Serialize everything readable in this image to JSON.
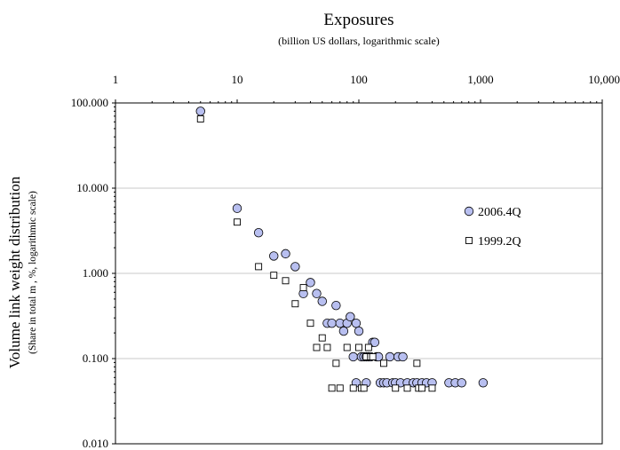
{
  "chart_data": {
    "type": "scatter",
    "title": "Exposures",
    "subtitle": "(billion US dollars, logarithmic scale)",
    "xlabel": "",
    "ylabel": "Volume link weight distribution",
    "ylabel_sub": "(Share in total m , %,  logarithmic scale)",
    "x_scale": "log",
    "y_scale": "log",
    "x_axis_position": "top",
    "xlim": [
      1,
      10000
    ],
    "ylim": [
      0.01,
      100
    ],
    "x_ticks": [
      "1",
      "10",
      "100",
      "1,000",
      "10,000"
    ],
    "y_ticks": [
      "100.000",
      "10.000",
      "1.000",
      "0.100",
      "0.010"
    ],
    "grid": "horizontal",
    "legend_position": "right",
    "series": [
      {
        "name": "2006.4Q",
        "marker": "circle",
        "color": "#b8bff0",
        "points": [
          [
            5,
            80
          ],
          [
            10,
            5.8
          ],
          [
            15,
            3.0
          ],
          [
            20,
            1.6
          ],
          [
            25,
            1.7
          ],
          [
            30,
            1.2
          ],
          [
            35,
            0.58
          ],
          [
            40,
            0.78
          ],
          [
            45,
            0.58
          ],
          [
            50,
            0.47
          ],
          [
            55,
            0.26
          ],
          [
            60,
            0.26
          ],
          [
            65,
            0.42
          ],
          [
            70,
            0.26
          ],
          [
            75,
            0.21
          ],
          [
            80,
            0.26
          ],
          [
            85,
            0.31
          ],
          [
            90,
            0.105
          ],
          [
            95,
            0.26
          ],
          [
            100,
            0.21
          ],
          [
            105,
            0.105
          ],
          [
            110,
            0.105
          ],
          [
            115,
            0.105
          ],
          [
            120,
            0.105
          ],
          [
            125,
            0.105
          ],
          [
            130,
            0.155
          ],
          [
            135,
            0.155
          ],
          [
            140,
            0.105
          ],
          [
            145,
            0.105
          ],
          [
            150,
            0.052
          ],
          [
            160,
            0.052
          ],
          [
            170,
            0.052
          ],
          [
            180,
            0.105
          ],
          [
            190,
            0.052
          ],
          [
            200,
            0.052
          ],
          [
            210,
            0.105
          ],
          [
            220,
            0.052
          ],
          [
            230,
            0.105
          ],
          [
            250,
            0.052
          ],
          [
            280,
            0.052
          ],
          [
            300,
            0.052
          ],
          [
            330,
            0.052
          ],
          [
            360,
            0.052
          ],
          [
            400,
            0.052
          ],
          [
            550,
            0.052
          ],
          [
            620,
            0.052
          ],
          [
            700,
            0.052
          ],
          [
            1050,
            0.052
          ],
          [
            95,
            0.052
          ],
          [
            115,
            0.052
          ]
        ]
      },
      {
        "name": "1999.2Q",
        "marker": "square",
        "color": "#ffffff",
        "points": [
          [
            5,
            65
          ],
          [
            10,
            4.0
          ],
          [
            15,
            1.2
          ],
          [
            20,
            0.95
          ],
          [
            25,
            0.82
          ],
          [
            30,
            0.44
          ],
          [
            35,
            0.68
          ],
          [
            40,
            0.26
          ],
          [
            45,
            0.135
          ],
          [
            50,
            0.175
          ],
          [
            55,
            0.135
          ],
          [
            60,
            0.045
          ],
          [
            65,
            0.088
          ],
          [
            70,
            0.045
          ],
          [
            80,
            0.135
          ],
          [
            90,
            0.045
          ],
          [
            100,
            0.135
          ],
          [
            105,
            0.045
          ],
          [
            110,
            0.045
          ],
          [
            115,
            0.105
          ],
          [
            120,
            0.135
          ],
          [
            125,
            0.105
          ],
          [
            130,
            0.105
          ],
          [
            160,
            0.088
          ],
          [
            200,
            0.045
          ],
          [
            250,
            0.045
          ],
          [
            300,
            0.088
          ],
          [
            310,
            0.045
          ],
          [
            330,
            0.045
          ],
          [
            400,
            0.045
          ]
        ]
      }
    ]
  }
}
